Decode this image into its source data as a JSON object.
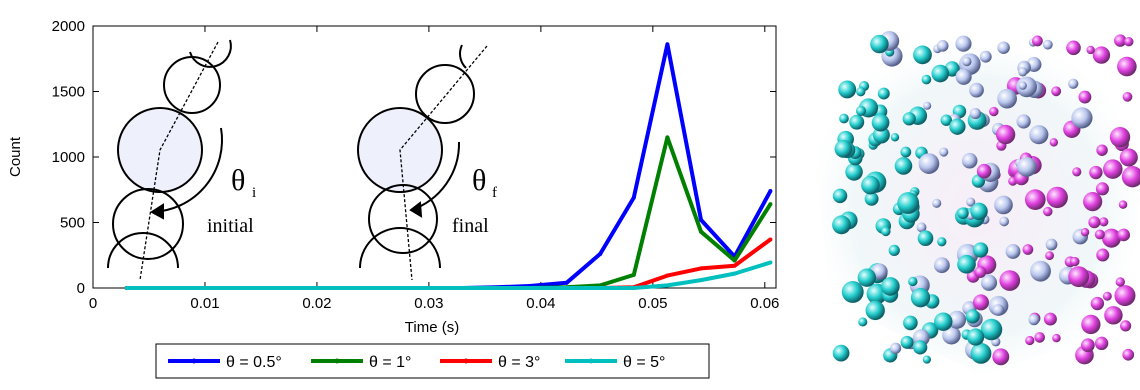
{
  "chart_data": {
    "type": "line",
    "xlabel": "Time (s)",
    "ylabel": "Count",
    "xlim": [
      0,
      0.061
    ],
    "ylim": [
      0,
      2000
    ],
    "xticks": [
      "0",
      "0.01",
      "0.02",
      "0.03",
      "0.04",
      "0.05",
      "0.06"
    ],
    "xtick_values": [
      0,
      0.01,
      0.02,
      0.03,
      0.04,
      0.05,
      0.06
    ],
    "yticks": [
      "0",
      "500",
      "1000",
      "1500",
      "2000"
    ],
    "ytick_values": [
      0,
      500,
      1000,
      1500,
      2000
    ],
    "grid": false,
    "legend_position": "bottom",
    "series": [
      {
        "name": "θ = 0.5°",
        "color": "#0000ff",
        "x": [
          0.003,
          0.006,
          0.009,
          0.012,
          0.015,
          0.018,
          0.021,
          0.024,
          0.027,
          0.03,
          0.033,
          0.036,
          0.039,
          0.0423,
          0.0453,
          0.0483,
          0.0513,
          0.0543,
          0.0573,
          0.0605
        ],
        "y": [
          0,
          0,
          0,
          0,
          0,
          0,
          0,
          0,
          0,
          0,
          0,
          5,
          15,
          40,
          260,
          690,
          1860,
          520,
          240,
          740
        ]
      },
      {
        "name": "θ = 1°",
        "color": "#008000",
        "x": [
          0.003,
          0.006,
          0.009,
          0.012,
          0.015,
          0.018,
          0.021,
          0.024,
          0.027,
          0.03,
          0.033,
          0.036,
          0.039,
          0.0423,
          0.0453,
          0.0483,
          0.0513,
          0.0543,
          0.0573,
          0.0605
        ],
        "y": [
          0,
          0,
          0,
          0,
          0,
          0,
          0,
          0,
          0,
          0,
          0,
          0,
          0,
          5,
          20,
          100,
          1150,
          430,
          210,
          640
        ]
      },
      {
        "name": "θ = 3°",
        "color": "#ff0000",
        "x": [
          0.003,
          0.006,
          0.009,
          0.012,
          0.015,
          0.018,
          0.021,
          0.024,
          0.027,
          0.03,
          0.033,
          0.036,
          0.039,
          0.0423,
          0.0453,
          0.0483,
          0.0513,
          0.0543,
          0.0573,
          0.0605
        ],
        "y": [
          0,
          0,
          0,
          0,
          0,
          0,
          0,
          0,
          0,
          0,
          0,
          0,
          0,
          0,
          0,
          5,
          95,
          150,
          170,
          370
        ]
      },
      {
        "name": "θ = 5°",
        "color": "#00bfbf",
        "x": [
          0.003,
          0.006,
          0.009,
          0.012,
          0.015,
          0.018,
          0.021,
          0.024,
          0.027,
          0.03,
          0.033,
          0.036,
          0.039,
          0.0423,
          0.0453,
          0.0483,
          0.0513,
          0.0543,
          0.0573,
          0.0605
        ],
        "y": [
          0,
          0,
          0,
          0,
          0,
          0,
          0,
          0,
          0,
          0,
          0,
          0,
          0,
          0,
          0,
          0,
          20,
          60,
          110,
          195
        ]
      }
    ],
    "annotations": {
      "initial_symbol": "θ",
      "initial_subscript": "i",
      "initial_label": "initial",
      "final_symbol": "θ",
      "final_subscript": "f",
      "final_label": "final"
    }
  }
}
